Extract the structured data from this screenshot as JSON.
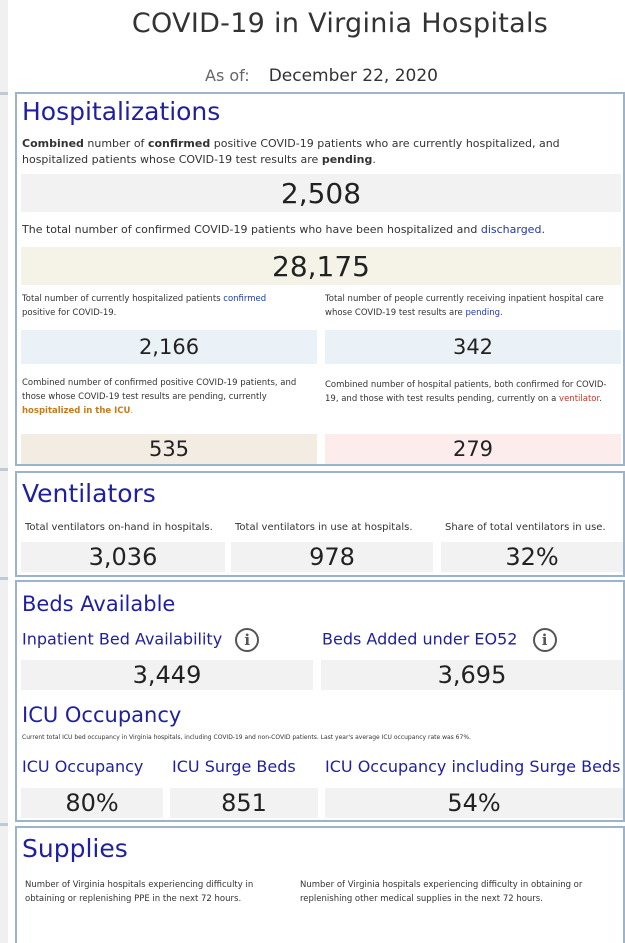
{
  "page": {
    "title": "COVID-19 in Virginia Hospitals",
    "as_of_label": "As of:",
    "as_of_date": "December 22, 2020"
  },
  "hospitalizations": {
    "heading": "Hospitalizations",
    "combined_desc": {
      "p1": "Combined",
      "p2": " number of ",
      "p3": "confirmed",
      "p4": " positive COVID-19 patients who are currently hospitalized, and hospitalized patients whose COVID-19 test results are ",
      "p5": "pending",
      "p6": "."
    },
    "combined_value": "2,508",
    "discharged_desc": {
      "p1": "The total number of confirmed COVID-19 patients who have been hospitalized and ",
      "p2": "discharged",
      "p3": "."
    },
    "discharged_value": "28,175",
    "confirmed_desc": {
      "p1": "Total number of currently hospitalized patients ",
      "p2": "confirmed",
      "p3": " positive for COVID-19."
    },
    "confirmed_value": "2,166",
    "pending_desc": {
      "p1": "Total number of people currently receiving inpatient hospital care whose COVID-19 test results are ",
      "p2": "pending",
      "p3": "."
    },
    "pending_value": "342",
    "icu_desc": {
      "p1": "Combined number of confirmed positive COVID-19 patients, and those whose COVID-19 test results are pending, currently ",
      "p2": "hospitalized in the ICU",
      "p3": "."
    },
    "icu_value": "535",
    "vent_desc": {
      "p1": "Combined number of hospital patients, both confirmed for COVID-19, and those with test results pending, currently on a ",
      "p2": "ventilator",
      "p3": "."
    },
    "vent_value": "279"
  },
  "ventilators": {
    "heading": "Ventilators",
    "onhand_label": "Total ventilators on-hand in hospitals.",
    "onhand_value": "3,036",
    "inuse_label": "Total ventilators in use at hospitals.",
    "inuse_value": "978",
    "share_label": "Share of total ventilators in use.",
    "share_value": "32%"
  },
  "beds": {
    "heading": "Beds Available",
    "inpatient_label": "Inpatient Bed Availability",
    "inpatient_value": "3,449",
    "eo52_label": "Beds Added under EO52",
    "eo52_value": "3,695",
    "info_glyph": "i",
    "icu_heading": "ICU Occupancy",
    "icu_note": "Current total ICU bed occupancy in Virginia hospitals, including COVID-19 and non-COVID patients. Last year's average ICU occupancy rate was 67%.",
    "icu_occ_label": "ICU Occupancy",
    "icu_occ_value": "80%",
    "surge_label": "ICU Surge Beds",
    "surge_value": "851",
    "icu_surge_occ_label": "ICU Occupancy including Surge Beds",
    "icu_surge_occ_value": "54%"
  },
  "supplies": {
    "heading": "Supplies",
    "ppe_desc": "Number of Virginia hospitals experiencing difficulty in obtaining or replenishing PPE in the next 72 hours.",
    "other_desc": "Number of Virginia hospitals experiencing difficulty in obtaining or replenishing other medical supplies in the next 72 hours."
  },
  "colors": {
    "heading_blue": "#1f1fa0",
    "link_blue": "#1f3aa8",
    "icu_orange": "#c77b1a",
    "vent_red": "#c0392b",
    "panel_border": "#9bb4cc"
  },
  "icons": {
    "inpatient_info": "info-circle-icon",
    "eo52_info": "info-circle-icon"
  }
}
